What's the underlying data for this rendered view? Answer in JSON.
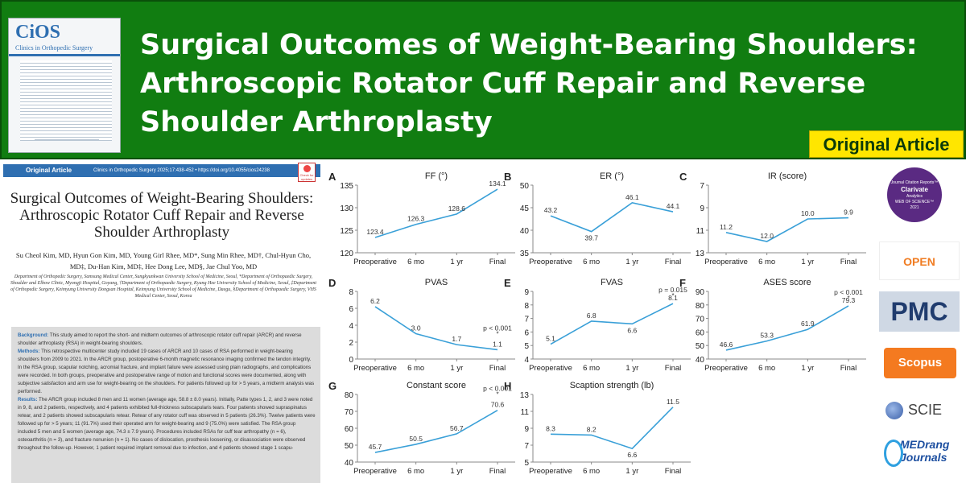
{
  "banner": {
    "title": "Surgical Outcomes of Weight-Bearing Shoulders: Arthroscopic Rotator Cuff Repair and Reverse Shoulder Arthroplasty",
    "badge": "Original Article",
    "cover_logo": "CiOS",
    "cover_journal": "Clinics in Orthopedic Surgery",
    "bg_color": "#117d11",
    "badge_color": "#ffe600"
  },
  "paper": {
    "tag": "Original Article",
    "journal_line": "Clinics in Orthopedic Surgery 2025;17:438-452 • https://doi.org/10.4055/cios24238",
    "check": "Check for updates",
    "title": "Surgical Outcomes of Weight-Bearing Shoulders: Arthroscopic Rotator Cuff Repair and Reverse Shoulder Arthroplasty",
    "authors": "Su Cheol Kim, MD, Hyun Gon Kim, MD, Young Girl Rhee, MD*, Sung Min Rhee, MD†, Chul-Hyun Cho, MD‡, Du-Han Kim, MD‡, Hee Dong Lee, MD§, Jae Chul Yoo, MD",
    "affiliations": "Department of Orthopedic Surgery, Samsung Medical Center, Sungkyunkwan University School of Medicine, Seoul, *Department of Orthopaedic Surgery, Shoulder and Elbow Clinic, Myongji Hospital, Goyang, †Department of Orthopaedic Surgery, Kyung Hee University School of Medicine, Seoul, ‡Department of Orthopedic Surgery, Keimyung University Dongsan Hospital, Keimyung University School of Medicine, Daegu, §Department of Orthopaedic Surgery, VHS Medical Center, Seoul, Korea",
    "abstract": [
      {
        "h": "Background:",
        "t": " This study aimed to report the short- and midterm outcomes of arthroscopic rotator cuff repair (ARCR) and reverse shoulder arthroplasty (RSA) in weight-bearing shoulders."
      },
      {
        "h": "Methods:",
        "t": " This retrospective multicenter study included 19 cases of ARCR and 10 cases of RSA performed in weight-bearing shoulders from 2009 to 2021. In the ARCR group, postoperative 6-month magnetic resonance imaging confirmed the tendon integrity. In the RSA group, scapular notching, acromial fracture, and implant failure were assessed using plain radiographs, and complications were recorded. In both groups, preoperative and postoperative range of motion and functional scores were documented, along with subjective satisfaction and arm use for weight-bearing on the shoulders. For patients followed up for > 5 years, a midterm analysis was performed."
      },
      {
        "h": "Results:",
        "t": " The ARCR group included 8 men and 11 women (average age, 58.8 ± 8.0 years). Initially, Patte types 1, 2, and 3 were noted in 9, 8, and 2 patients, respectively, and 4 patients exhibited full-thickness subscapularis tears. Four patients showed supraspinatus retear, and 2 patients showed subscapularis retear. Retear of any rotator cuff was observed in 5 patients (26.3%). Twelve patients were followed up for > 5 years; 11 (91.7%) used their operated arm for weight-bearing and 9 (75.0%) were satisfied. The RSA group included 5 men and 5 women (average age, 74.3 ± 7.9 years). Procedures included RSAs for cuff tear arthropathy (n = 6), osteoarthritis (n = 3), and fracture nonunion (n = 1). No cases of dislocation, prosthesis loosening, or disassociation were observed throughout the follow-up. However, 1 patient required implant removal due to infection, and 4 patients showed stage 1 scapu-"
      }
    ]
  },
  "chart_data": [
    {
      "type": "line",
      "panel": "A",
      "title": "FF (°)",
      "categories": [
        "Preoperative",
        "6 mo",
        "1 yr",
        "Final"
      ],
      "values": [
        123.4,
        126.3,
        128.6,
        134.1
      ],
      "ylim": [
        120,
        135
      ],
      "yticks": [
        120,
        125,
        130,
        135
      ],
      "reversed": false,
      "annotation": ""
    },
    {
      "type": "line",
      "panel": "B",
      "title": "ER (°)",
      "categories": [
        "Preoperative",
        "6 mo",
        "1 yr",
        "Final"
      ],
      "values": [
        43.2,
        39.7,
        46.1,
        44.1
      ],
      "ylim": [
        35,
        50
      ],
      "yticks": [
        35,
        40,
        45,
        50
      ],
      "reversed": false,
      "annotation": ""
    },
    {
      "type": "line",
      "panel": "C",
      "title": "IR (score)",
      "categories": [
        "Preoperative",
        "6 mo",
        "1 yr",
        "Final"
      ],
      "values": [
        11.2,
        12.0,
        10.0,
        9.9
      ],
      "ylim": [
        7,
        13
      ],
      "yticks": [
        7,
        9,
        11,
        13
      ],
      "reversed": true,
      "annotation": ""
    },
    {
      "type": "line",
      "panel": "D",
      "title": "PVAS",
      "categories": [
        "Preoperative",
        "6 mo",
        "1 yr",
        "Final"
      ],
      "values": [
        6.2,
        3.0,
        1.7,
        1.1
      ],
      "ylim": [
        0,
        8
      ],
      "yticks": [
        0,
        2,
        4,
        6,
        8
      ],
      "reversed": false,
      "annotation": "p < 0.001"
    },
    {
      "type": "line",
      "panel": "E",
      "title": "FVAS",
      "categories": [
        "Preoperative",
        "6 mo",
        "1 yr",
        "Final"
      ],
      "values": [
        5.1,
        6.8,
        6.6,
        8.1
      ],
      "ylim": [
        4,
        9
      ],
      "yticks": [
        4,
        5,
        6,
        7,
        8,
        9
      ],
      "reversed": false,
      "annotation": "p = 0.015"
    },
    {
      "type": "line",
      "panel": "F",
      "title": "ASES score",
      "categories": [
        "Preoperative",
        "6 mo",
        "1 yr",
        "Final"
      ],
      "values": [
        46.6,
        53.3,
        61.9,
        79.3
      ],
      "ylim": [
        40,
        90
      ],
      "yticks": [
        40,
        50,
        60,
        70,
        80,
        90
      ],
      "reversed": false,
      "annotation": "p < 0.001"
    },
    {
      "type": "line",
      "panel": "G",
      "title": "Constant score",
      "categories": [
        "Preoperative",
        "6 mo",
        "1 yr",
        "Final"
      ],
      "values": [
        45.7,
        50.5,
        56.7,
        70.6
      ],
      "ylim": [
        40,
        80
      ],
      "yticks": [
        40,
        50,
        60,
        70,
        80
      ],
      "reversed": false,
      "annotation": "p < 0.001"
    },
    {
      "type": "line",
      "panel": "H",
      "title": "Scaption strength (lb)",
      "categories": [
        "Preoperative",
        "6 mo",
        "1 yr",
        "Final"
      ],
      "values": [
        8.3,
        8.2,
        6.6,
        11.5
      ],
      "ylim": [
        5,
        13
      ],
      "yticks": [
        5,
        7,
        9,
        11,
        13
      ],
      "reversed": false,
      "annotation": ""
    }
  ],
  "logos": {
    "clarivate": {
      "line1": "Journal Citation Reports™",
      "line2": "Clarivate",
      "line3": "Analytics",
      "line4": "WEB OF SCIENCE™",
      "line5": "2021",
      "color": "#5a2a82"
    },
    "open_access": "OPEN ACCESS",
    "pmc": "PMC",
    "scopus": "Scopus",
    "scie": "SCIE",
    "medrang": "MEDrang Journals"
  }
}
